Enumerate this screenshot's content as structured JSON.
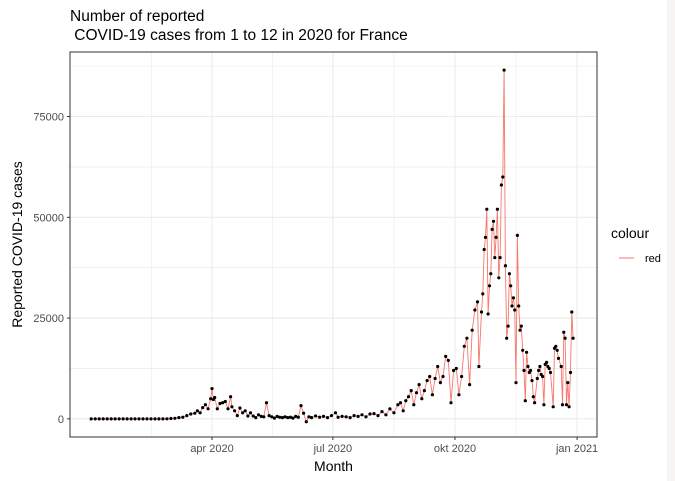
{
  "chart_data": {
    "type": "line",
    "title_line1": "Number of reported",
    "title_line2": " COVID-19 cases from 1 to 12 in 2020 for France",
    "xlabel": "Month",
    "ylabel": "Reported COVID-19 cases",
    "x_ticks": [
      {
        "label": "apr 2020",
        "date": "2020-04-01"
      },
      {
        "label": "jul 2020",
        "date": "2020-07-01"
      },
      {
        "label": "okt 2020",
        "date": "2020-10-01"
      },
      {
        "label": "jan 2021",
        "date": "2021-01-01"
      }
    ],
    "y_ticks": [
      0,
      25000,
      50000,
      75000
    ],
    "y_tick_labels": [
      "0",
      "25000",
      "50000",
      "75000"
    ],
    "xlim": [
      "2019-12-16",
      "2021-01-16"
    ],
    "ylim": [
      -4500,
      91000
    ],
    "grid": true,
    "legend": {
      "title": "colour",
      "entries": [
        "red"
      ],
      "position": "right"
    },
    "series": [
      {
        "name": "red",
        "color": "#f8766d",
        "point_color": "#000000",
        "points": [
          [
            "2020-01-01",
            0
          ],
          [
            "2020-01-04",
            0
          ],
          [
            "2020-01-07",
            0
          ],
          [
            "2020-01-10",
            0
          ],
          [
            "2020-01-13",
            0
          ],
          [
            "2020-01-16",
            0
          ],
          [
            "2020-01-19",
            0
          ],
          [
            "2020-01-22",
            0
          ],
          [
            "2020-01-25",
            0
          ],
          [
            "2020-01-28",
            0
          ],
          [
            "2020-01-31",
            0
          ],
          [
            "2020-02-03",
            0
          ],
          [
            "2020-02-06",
            0
          ],
          [
            "2020-02-09",
            0
          ],
          [
            "2020-02-12",
            0
          ],
          [
            "2020-02-15",
            0
          ],
          [
            "2020-02-18",
            0
          ],
          [
            "2020-02-21",
            0
          ],
          [
            "2020-02-24",
            0
          ],
          [
            "2020-02-27",
            10
          ],
          [
            "2020-03-01",
            100
          ],
          [
            "2020-03-04",
            150
          ],
          [
            "2020-03-07",
            300
          ],
          [
            "2020-03-10",
            400
          ],
          [
            "2020-03-13",
            800
          ],
          [
            "2020-03-16",
            1200
          ],
          [
            "2020-03-19",
            1400
          ],
          [
            "2020-03-21",
            2000
          ],
          [
            "2020-03-23",
            1500
          ],
          [
            "2020-03-25",
            2800
          ],
          [
            "2020-03-27",
            3500
          ],
          [
            "2020-03-29",
            2500
          ],
          [
            "2020-03-31",
            5000
          ],
          [
            "2020-04-01",
            7500
          ],
          [
            "2020-04-02",
            4800
          ],
          [
            "2020-04-03",
            5300
          ],
          [
            "2020-04-05",
            2500
          ],
          [
            "2020-04-07",
            3800
          ],
          [
            "2020-04-09",
            4000
          ],
          [
            "2020-04-11",
            4300
          ],
          [
            "2020-04-13",
            2500
          ],
          [
            "2020-04-15",
            5500
          ],
          [
            "2020-04-16",
            3000
          ],
          [
            "2020-04-18",
            2000
          ],
          [
            "2020-04-20",
            800
          ],
          [
            "2020-04-22",
            2700
          ],
          [
            "2020-04-24",
            1500
          ],
          [
            "2020-04-26",
            2000
          ],
          [
            "2020-04-28",
            700
          ],
          [
            "2020-04-30",
            1500
          ],
          [
            "2020-05-02",
            700
          ],
          [
            "2020-05-04",
            300
          ],
          [
            "2020-05-06",
            1000
          ],
          [
            "2020-05-08",
            600
          ],
          [
            "2020-05-10",
            500
          ],
          [
            "2020-05-12",
            4000
          ],
          [
            "2020-05-14",
            800
          ],
          [
            "2020-05-16",
            500
          ],
          [
            "2020-05-18",
            200
          ],
          [
            "2020-05-20",
            600
          ],
          [
            "2020-05-22",
            400
          ],
          [
            "2020-05-24",
            300
          ],
          [
            "2020-05-26",
            500
          ],
          [
            "2020-05-28",
            300
          ],
          [
            "2020-05-30",
            400
          ],
          [
            "2020-06-01",
            200
          ],
          [
            "2020-06-03",
            600
          ],
          [
            "2020-06-05",
            400
          ],
          [
            "2020-06-07",
            3300
          ],
          [
            "2020-06-09",
            1400
          ],
          [
            "2020-06-11",
            -700
          ],
          [
            "2020-06-13",
            500
          ],
          [
            "2020-06-15",
            300
          ],
          [
            "2020-06-18",
            700
          ],
          [
            "2020-06-21",
            400
          ],
          [
            "2020-06-24",
            600
          ],
          [
            "2020-06-27",
            300
          ],
          [
            "2020-06-30",
            800
          ],
          [
            "2020-07-03",
            1500
          ],
          [
            "2020-07-05",
            400
          ],
          [
            "2020-07-08",
            600
          ],
          [
            "2020-07-11",
            500
          ],
          [
            "2020-07-14",
            300
          ],
          [
            "2020-07-17",
            800
          ],
          [
            "2020-07-20",
            600
          ],
          [
            "2020-07-23",
            1000
          ],
          [
            "2020-07-26",
            500
          ],
          [
            "2020-07-29",
            1200
          ],
          [
            "2020-08-01",
            1300
          ],
          [
            "2020-08-04",
            800
          ],
          [
            "2020-08-07",
            1800
          ],
          [
            "2020-08-10",
            1000
          ],
          [
            "2020-08-13",
            2500
          ],
          [
            "2020-08-16",
            1500
          ],
          [
            "2020-08-19",
            3500
          ],
          [
            "2020-08-21",
            4000
          ],
          [
            "2020-08-23",
            2000
          ],
          [
            "2020-08-25",
            4500
          ],
          [
            "2020-08-27",
            5500
          ],
          [
            "2020-08-29",
            7000
          ],
          [
            "2020-08-31",
            3500
          ],
          [
            "2020-09-02",
            6500
          ],
          [
            "2020-09-04",
            8500
          ],
          [
            "2020-09-06",
            5000
          ],
          [
            "2020-09-08",
            7000
          ],
          [
            "2020-09-10",
            9500
          ],
          [
            "2020-09-12",
            10500
          ],
          [
            "2020-09-14",
            6000
          ],
          [
            "2020-09-16",
            10000
          ],
          [
            "2020-09-18",
            13000
          ],
          [
            "2020-09-20",
            9000
          ],
          [
            "2020-09-22",
            10500
          ],
          [
            "2020-09-24",
            15500
          ],
          [
            "2020-09-26",
            14500
          ],
          [
            "2020-09-28",
            4000
          ],
          [
            "2020-09-30",
            12000
          ],
          [
            "2020-10-02",
            12500
          ],
          [
            "2020-10-04",
            6000
          ],
          [
            "2020-10-06",
            10500
          ],
          [
            "2020-10-08",
            18000
          ],
          [
            "2020-10-10",
            20000
          ],
          [
            "2020-10-12",
            8500
          ],
          [
            "2020-10-14",
            22000
          ],
          [
            "2020-10-16",
            27000
          ],
          [
            "2020-10-18",
            29000
          ],
          [
            "2020-10-19",
            13000
          ],
          [
            "2020-10-21",
            26500
          ],
          [
            "2020-10-22",
            31000
          ],
          [
            "2020-10-23",
            42000
          ],
          [
            "2020-10-24",
            45000
          ],
          [
            "2020-10-25",
            52000
          ],
          [
            "2020-10-26",
            26000
          ],
          [
            "2020-10-27",
            33000
          ],
          [
            "2020-10-28",
            36000
          ],
          [
            "2020-10-29",
            47000
          ],
          [
            "2020-10-30",
            49000
          ],
          [
            "2020-10-31",
            40000
          ],
          [
            "2020-11-01",
            45000
          ],
          [
            "2020-11-02",
            52000
          ],
          [
            "2020-11-03",
            35000
          ],
          [
            "2020-11-04",
            40000
          ],
          [
            "2020-11-05",
            58000
          ],
          [
            "2020-11-06",
            60000
          ],
          [
            "2020-11-07",
            86500
          ],
          [
            "2020-11-08",
            38000
          ],
          [
            "2020-11-09",
            20000
          ],
          [
            "2020-11-10",
            23000
          ],
          [
            "2020-11-11",
            36000
          ],
          [
            "2020-11-12",
            33000
          ],
          [
            "2020-11-13",
            28000
          ],
          [
            "2020-11-14",
            30000
          ],
          [
            "2020-11-15",
            27000
          ],
          [
            "2020-11-16",
            9000
          ],
          [
            "2020-11-17",
            45500
          ],
          [
            "2020-11-18",
            28000
          ],
          [
            "2020-11-19",
            22000
          ],
          [
            "2020-11-20",
            23000
          ],
          [
            "2020-11-21",
            17000
          ],
          [
            "2020-11-22",
            12000
          ],
          [
            "2020-11-23",
            4500
          ],
          [
            "2020-11-24",
            16500
          ],
          [
            "2020-11-25",
            13000
          ],
          [
            "2020-11-26",
            11500
          ],
          [
            "2020-11-27",
            12000
          ],
          [
            "2020-11-28",
            9500
          ],
          [
            "2020-11-29",
            5500
          ],
          [
            "2020-11-30",
            4000
          ],
          [
            "2020-12-02",
            10000
          ],
          [
            "2020-12-03",
            12000
          ],
          [
            "2020-12-04",
            13000
          ],
          [
            "2020-12-05",
            11000
          ],
          [
            "2020-12-06",
            10500
          ],
          [
            "2020-12-07",
            3500
          ],
          [
            "2020-12-08",
            13500
          ],
          [
            "2020-12-09",
            14000
          ],
          [
            "2020-12-10",
            13000
          ],
          [
            "2020-12-11",
            12500
          ],
          [
            "2020-12-12",
            11500
          ],
          [
            "2020-12-14",
            3000
          ],
          [
            "2020-12-15",
            17500
          ],
          [
            "2020-12-16",
            18000
          ],
          [
            "2020-12-17",
            17000
          ],
          [
            "2020-12-18",
            15000
          ],
          [
            "2020-12-20",
            13000
          ],
          [
            "2020-12-21",
            3500
          ],
          [
            "2020-12-22",
            21500
          ],
          [
            "2020-12-23",
            20000
          ],
          [
            "2020-12-24",
            3500
          ],
          [
            "2020-12-25",
            9000
          ],
          [
            "2020-12-26",
            3000
          ],
          [
            "2020-12-27",
            11500
          ],
          [
            "2020-12-28",
            26500
          ],
          [
            "2020-12-29",
            20000
          ]
        ]
      }
    ]
  }
}
